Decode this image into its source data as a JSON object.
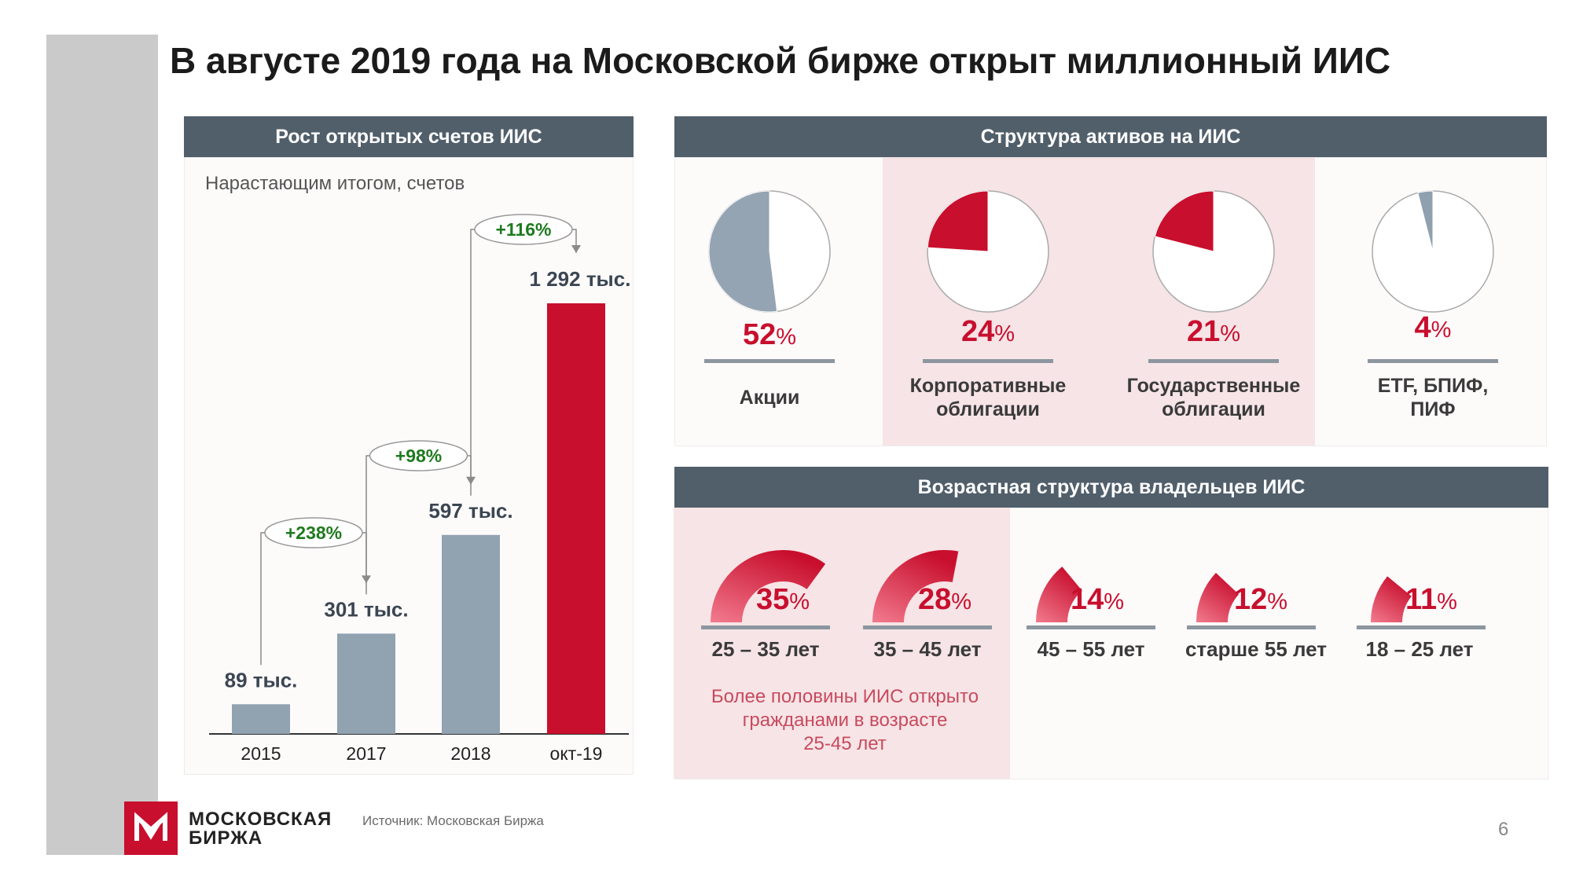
{
  "title": "В августе 2019 года на Московской бирже открыт миллионный ИИС",
  "colors": {
    "header": "#515f6b",
    "red": "#c80f2e",
    "gray_bar": "#91a2b0",
    "green": "#1e7a1e",
    "pink_bg": "#f6e4e6"
  },
  "growth_panel": {
    "header": "Рост открытых счетов ИИС",
    "subtitle": "Нарастающим итогом, счетов"
  },
  "assets_panel": {
    "header": "Структура активов на ИИС",
    "items": [
      {
        "value": "52",
        "pct": "%",
        "label_lines": [
          "Акции"
        ]
      },
      {
        "value": "24",
        "pct": "%",
        "label_lines": [
          "Корпоративные",
          "облигации"
        ]
      },
      {
        "value": "21",
        "pct": "%",
        "label_lines": [
          "Государственные",
          "облигации"
        ]
      },
      {
        "value": "4",
        "pct": "%",
        "label_lines": [
          "ETF, БПИФ,",
          "ПИФ"
        ]
      }
    ]
  },
  "age_panel": {
    "header": "Возрастная структура владельцев ИИС",
    "items": [
      {
        "value": "35",
        "pct": "%",
        "label": "25 – 35 лет"
      },
      {
        "value": "28",
        "pct": "%",
        "label": "35 – 45 лет"
      },
      {
        "value": "14",
        "pct": "%",
        "label": "45 – 55 лет"
      },
      {
        "value": "12",
        "pct": "%",
        "label": "старше 55 лет"
      },
      {
        "value": "11",
        "pct": "%",
        "label": "18 – 25 лет"
      }
    ],
    "note_lines": [
      "Более половины ИИС открыто",
      "гражданами в возрасте",
      "25-45 лет"
    ]
  },
  "footer": {
    "logo_line1": "МОСКОВСКАЯ",
    "logo_line2": "БИРЖА",
    "source": "Источник: Московская Биржа",
    "page": "6"
  },
  "chart_data": [
    {
      "type": "bar",
      "title": "Рост открытых счетов ИИС",
      "subtitle": "Нарастающим итогом, счетов",
      "categories": [
        "2015",
        "2017",
        "2018",
        "окт-19"
      ],
      "values": [
        89,
        301,
        597,
        1292
      ],
      "value_labels": [
        "89 тыс.",
        "301 тыс.",
        "597 тыс.",
        "1 292 тыс."
      ],
      "colors": [
        "#91a2b0",
        "#91a2b0",
        "#91a2b0",
        "#c80f2e"
      ],
      "growth_annotations": [
        {
          "from": "2015",
          "to": "2017",
          "label": "+238%"
        },
        {
          "from": "2017",
          "to": "2018",
          "label": "+98%"
        },
        {
          "from": "2018",
          "to": "окт-19",
          "label": "+116%"
        }
      ],
      "ylim": [
        0,
        1400
      ]
    },
    {
      "type": "pie",
      "title": "Структура активов на ИИС",
      "categories": [
        "Акции",
        "Корпоративные облигации",
        "Государственные облигации",
        "ETF, БПИФ, ПИФ"
      ],
      "values": [
        52,
        24,
        21,
        4
      ]
    },
    {
      "type": "bar",
      "title": "Возрастная структура владельцев ИИС",
      "categories": [
        "25 – 35 лет",
        "35 – 45 лет",
        "45 – 55 лет",
        "старше 55 лет",
        "18 – 25 лет"
      ],
      "values": [
        35,
        28,
        14,
        12,
        11
      ]
    }
  ]
}
